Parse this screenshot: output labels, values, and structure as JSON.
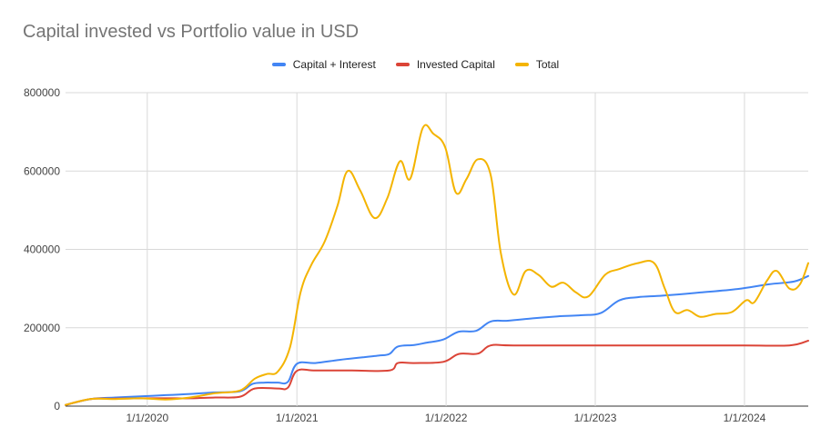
{
  "chart_data": {
    "type": "line",
    "title": "Capital invested vs Portfolio value in USD",
    "xlabel": "",
    "ylabel": "",
    "ylim": [
      0,
      800000
    ],
    "y_ticks": [
      0,
      200000,
      400000,
      600000,
      800000
    ],
    "y_tick_labels": [
      "0",
      "200000",
      "400000",
      "600000",
      "800000"
    ],
    "x_range": [
      "2019-06-15",
      "2024-06-05"
    ],
    "x_ticks": [
      "2020-01-01",
      "2021-01-01",
      "2022-01-01",
      "2023-01-01",
      "2024-01-01"
    ],
    "x_tick_labels": [
      "1/1/2020",
      "1/1/2021",
      "1/1/2022",
      "1/1/2023",
      "1/1/2024"
    ],
    "grid": true,
    "legend_position": "top",
    "series": [
      {
        "name": "Capital + Interest",
        "color": "#4285f4",
        "points": [
          [
            "2019-06-15",
            3000
          ],
          [
            "2019-08-15",
            18000
          ],
          [
            "2019-10-15",
            22000
          ],
          [
            "2019-12-15",
            25000
          ],
          [
            "2020-02-15",
            28000
          ],
          [
            "2020-04-15",
            31000
          ],
          [
            "2020-06-15",
            35000
          ],
          [
            "2020-08-15",
            38000
          ],
          [
            "2020-09-15",
            57000
          ],
          [
            "2020-10-15",
            60000
          ],
          [
            "2020-11-15",
            60000
          ],
          [
            "2020-12-10",
            62000
          ],
          [
            "2021-01-01",
            108000
          ],
          [
            "2021-02-15",
            110000
          ],
          [
            "2021-04-15",
            118000
          ],
          [
            "2021-06-15",
            125000
          ],
          [
            "2021-07-20",
            129000
          ],
          [
            "2021-08-15",
            133000
          ],
          [
            "2021-09-05",
            152000
          ],
          [
            "2021-10-15",
            156000
          ],
          [
            "2021-11-15",
            162000
          ],
          [
            "2021-12-25",
            170000
          ],
          [
            "2022-02-01",
            190000
          ],
          [
            "2022-03-15",
            192000
          ],
          [
            "2022-04-20",
            216000
          ],
          [
            "2022-06-01",
            218000
          ],
          [
            "2022-08-01",
            224000
          ],
          [
            "2022-10-01",
            229000
          ],
          [
            "2022-12-01",
            232000
          ],
          [
            "2023-01-15",
            238000
          ],
          [
            "2023-03-01",
            270000
          ],
          [
            "2023-04-15",
            278000
          ],
          [
            "2023-06-15",
            282000
          ],
          [
            "2023-09-15",
            290000
          ],
          [
            "2023-12-15",
            299000
          ],
          [
            "2024-03-01",
            311000
          ],
          [
            "2024-05-01",
            318000
          ],
          [
            "2024-06-05",
            332000
          ]
        ]
      },
      {
        "name": "Invested Capital",
        "color": "#db4437",
        "points": [
          [
            "2019-06-15",
            3000
          ],
          [
            "2019-08-15",
            18000
          ],
          [
            "2019-10-15",
            19000
          ],
          [
            "2019-12-15",
            20000
          ],
          [
            "2020-02-15",
            20000
          ],
          [
            "2020-04-15",
            20000
          ],
          [
            "2020-06-15",
            22000
          ],
          [
            "2020-08-15",
            24000
          ],
          [
            "2020-09-20",
            45000
          ],
          [
            "2020-11-15",
            45000
          ],
          [
            "2020-12-10",
            47000
          ],
          [
            "2021-01-01",
            90000
          ],
          [
            "2021-02-15",
            91000
          ],
          [
            "2021-05-15",
            91000
          ],
          [
            "2021-08-15",
            91000
          ],
          [
            "2021-09-05",
            110000
          ],
          [
            "2021-10-15",
            110000
          ],
          [
            "2021-12-25",
            113000
          ],
          [
            "2022-02-01",
            133000
          ],
          [
            "2022-03-20",
            134000
          ],
          [
            "2022-04-20",
            155000
          ],
          [
            "2022-06-15",
            155000
          ],
          [
            "2023-01-01",
            155000
          ],
          [
            "2023-06-15",
            155000
          ],
          [
            "2024-01-01",
            155000
          ],
          [
            "2024-04-20",
            155000
          ],
          [
            "2024-06-05",
            167000
          ]
        ]
      },
      {
        "name": "Total",
        "color": "#f4b400",
        "points": [
          [
            "2019-06-15",
            3000
          ],
          [
            "2019-08-15",
            18000
          ],
          [
            "2019-10-15",
            18000
          ],
          [
            "2019-12-15",
            20000
          ],
          [
            "2020-02-15",
            17000
          ],
          [
            "2020-04-15",
            22000
          ],
          [
            "2020-06-15",
            33000
          ],
          [
            "2020-08-15",
            40000
          ],
          [
            "2020-09-20",
            70000
          ],
          [
            "2020-10-20",
            82000
          ],
          [
            "2020-11-15",
            88000
          ],
          [
            "2020-12-15",
            150000
          ],
          [
            "2021-01-10",
            290000
          ],
          [
            "2021-02-05",
            360000
          ],
          [
            "2021-03-10",
            420000
          ],
          [
            "2021-04-10",
            510000
          ],
          [
            "2021-05-05",
            600000
          ],
          [
            "2021-06-05",
            550000
          ],
          [
            "2021-07-10",
            480000
          ],
          [
            "2021-08-10",
            530000
          ],
          [
            "2021-09-10",
            625000
          ],
          [
            "2021-10-05",
            580000
          ],
          [
            "2021-11-05",
            710000
          ],
          [
            "2021-12-01",
            695000
          ],
          [
            "2021-12-30",
            660000
          ],
          [
            "2022-01-25",
            545000
          ],
          [
            "2022-02-20",
            580000
          ],
          [
            "2022-03-20",
            630000
          ],
          [
            "2022-04-20",
            590000
          ],
          [
            "2022-05-15",
            390000
          ],
          [
            "2022-06-15",
            285000
          ],
          [
            "2022-07-15",
            345000
          ],
          [
            "2022-08-15",
            335000
          ],
          [
            "2022-09-15",
            305000
          ],
          [
            "2022-10-15",
            315000
          ],
          [
            "2022-11-15",
            290000
          ],
          [
            "2022-12-15",
            280000
          ],
          [
            "2023-01-25",
            335000
          ],
          [
            "2023-03-01",
            350000
          ],
          [
            "2023-04-15",
            365000
          ],
          [
            "2023-05-25",
            365000
          ],
          [
            "2023-06-20",
            300000
          ],
          [
            "2023-07-15",
            240000
          ],
          [
            "2023-08-15",
            245000
          ],
          [
            "2023-09-15",
            228000
          ],
          [
            "2023-10-20",
            235000
          ],
          [
            "2023-12-01",
            240000
          ],
          [
            "2024-01-05",
            270000
          ],
          [
            "2024-01-25",
            265000
          ],
          [
            "2024-02-25",
            320000
          ],
          [
            "2024-03-20",
            345000
          ],
          [
            "2024-04-20",
            300000
          ],
          [
            "2024-05-15",
            310000
          ],
          [
            "2024-06-05",
            365000
          ]
        ]
      }
    ]
  }
}
